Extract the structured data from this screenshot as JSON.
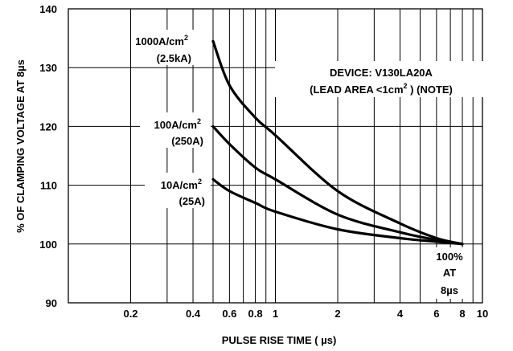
{
  "chart_data": {
    "type": "line",
    "xscale": "log",
    "xlim": [
      0.1,
      10
    ],
    "ylim": [
      90,
      140
    ],
    "xlabel": "PULSE RISE TIME ( µs)",
    "ylabel": "% OF CLAMPING VOLTAGE AT 8µs",
    "grid": true,
    "x_ticks": [
      {
        "v": 0.2,
        "label": "0.2"
      },
      {
        "v": 0.4,
        "label": "0.4"
      },
      {
        "v": 0.6,
        "label": "0.6"
      },
      {
        "v": 0.8,
        "label": "0.8"
      },
      {
        "v": 1,
        "label": "1"
      },
      {
        "v": 2,
        "label": "2"
      },
      {
        "v": 4,
        "label": "4"
      },
      {
        "v": 6,
        "label": "6"
      },
      {
        "v": 8,
        "label": "8"
      },
      {
        "v": 10,
        "label": "10"
      }
    ],
    "x_minor_grid": [
      0.3,
      0.5,
      0.7,
      0.9,
      3,
      5,
      7,
      9
    ],
    "y_ticks": [
      {
        "v": 90,
        "label": "90"
      },
      {
        "v": 100,
        "label": "100"
      },
      {
        "v": 110,
        "label": "110"
      },
      {
        "v": 120,
        "label": "120"
      },
      {
        "v": 130,
        "label": "130"
      },
      {
        "v": 140,
        "label": "140"
      }
    ],
    "series": [
      {
        "name": "1000A/cm² (2.5kA)",
        "x": [
          0.5,
          0.6,
          0.8,
          1,
          2,
          4,
          6,
          8
        ],
        "values": [
          134.5,
          127,
          121.5,
          118.5,
          109,
          103.5,
          101,
          100
        ]
      },
      {
        "name": "100A/cm² (250A)",
        "x": [
          0.5,
          0.6,
          0.8,
          1,
          2,
          4,
          6,
          8
        ],
        "values": [
          120,
          117,
          113,
          111,
          105,
          102,
          100.7,
          100
        ]
      },
      {
        "name": "10A/cm² (25A)",
        "x": [
          0.5,
          0.6,
          0.8,
          1,
          2,
          4,
          6,
          8
        ],
        "values": [
          111,
          109,
          107,
          105.5,
          102.5,
          101,
          100.4,
          100
        ]
      }
    ],
    "series_labels": [
      {
        "line1": "1000A/cm",
        "sup": "2",
        "line2": "(2.5kA)"
      },
      {
        "line1": "100A/cm",
        "sup": "2",
        "line2": "(250A)"
      },
      {
        "line1": "10A/cm",
        "sup": "2",
        "line2": "(25A)"
      }
    ],
    "device_note": {
      "line1": "DEVICE: V130LA20A",
      "line2_pre": "(LEAD AREA <1cm",
      "line2_sup": "2",
      "line2_post": " ) (NOTE)"
    },
    "reference_note": [
      "100%",
      "AT",
      "8µs"
    ]
  }
}
